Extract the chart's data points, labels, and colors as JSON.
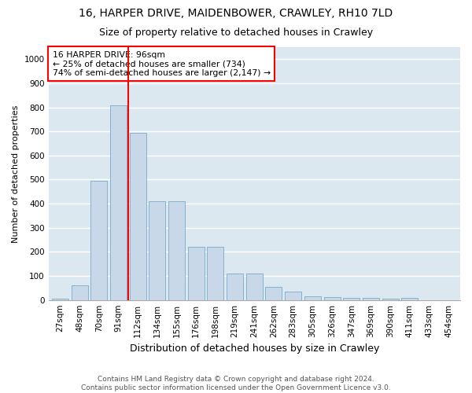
{
  "title_line1": "16, HARPER DRIVE, MAIDENBOWER, CRAWLEY, RH10 7LD",
  "title_line2": "Size of property relative to detached houses in Crawley",
  "xlabel": "Distribution of detached houses by size in Crawley",
  "ylabel": "Number of detached properties",
  "categories": [
    "27sqm",
    "48sqm",
    "70sqm",
    "91sqm",
    "112sqm",
    "134sqm",
    "155sqm",
    "176sqm",
    "198sqm",
    "219sqm",
    "241sqm",
    "262sqm",
    "283sqm",
    "305sqm",
    "326sqm",
    "347sqm",
    "369sqm",
    "390sqm",
    "411sqm",
    "433sqm",
    "454sqm"
  ],
  "values": [
    5,
    60,
    495,
    810,
    695,
    410,
    410,
    220,
    220,
    110,
    110,
    55,
    35,
    15,
    12,
    10,
    8,
    5,
    10,
    0,
    0
  ],
  "bar_color": "#c8d8e8",
  "bar_edge_color": "#7aaac8",
  "red_line_x": 3.5,
  "annotation_line1": "16 HARPER DRIVE: 96sqm",
  "annotation_line2": "← 25% of detached houses are smaller (734)",
  "annotation_line3": "74% of semi-detached houses are larger (2,147) →",
  "ylim": [
    0,
    1050
  ],
  "yticks": [
    0,
    100,
    200,
    300,
    400,
    500,
    600,
    700,
    800,
    900,
    1000
  ],
  "background_color": "#dce8f0",
  "grid_color": "#ffffff",
  "fig_background": "#ffffff",
  "footer_line1": "Contains HM Land Registry data © Crown copyright and database right 2024.",
  "footer_line2": "Contains public sector information licensed under the Open Government Licence v3.0.",
  "title_fontsize": 10,
  "subtitle_fontsize": 9,
  "ylabel_fontsize": 8,
  "xlabel_fontsize": 9,
  "tick_fontsize": 7.5,
  "footer_fontsize": 6.5
}
